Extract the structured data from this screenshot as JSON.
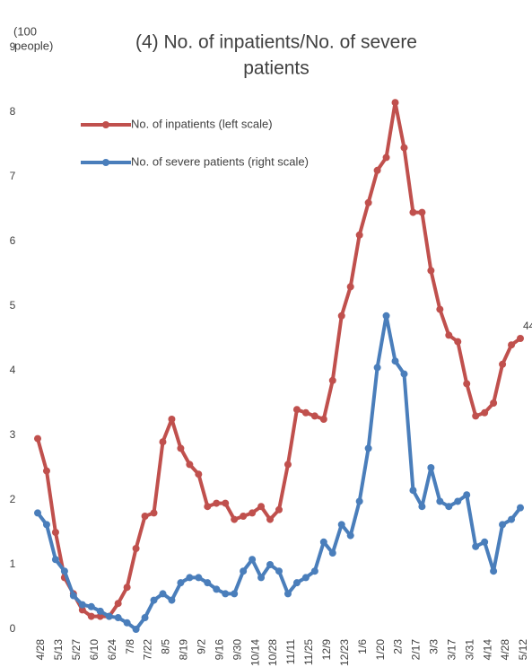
{
  "chart_data": {
    "type": "line",
    "title": [
      "(4) No. of inpatients/No. of severe",
      "patients"
    ],
    "ylabel": [
      "(100",
      "people)"
    ],
    "categories": [
      "4/28",
      null,
      "5/13",
      null,
      "5/27",
      null,
      "6/10",
      null,
      "6/24",
      null,
      "7/8",
      null,
      "7/22",
      null,
      "8/5",
      null,
      "8/19",
      null,
      "9/2",
      null,
      "9/16",
      null,
      "9/30",
      null,
      "10/14",
      null,
      "10/28",
      null,
      "11/11",
      null,
      "11/25",
      null,
      "12/9",
      null,
      "12/23",
      null,
      "1/6",
      null,
      "1/20",
      null,
      "2/3",
      null,
      "2/17",
      null,
      "3/3",
      null,
      "3/17",
      null,
      "3/31",
      null,
      "4/14",
      null,
      "4/28",
      null,
      "5/12"
    ],
    "series": [
      {
        "name": "No. of inpatients (left scale)",
        "color": "#c0504d",
        "values": [
          2.95,
          2.45,
          1.5,
          0.8,
          0.55,
          0.3,
          0.2,
          0.2,
          0.2,
          0.4,
          0.65,
          1.25,
          1.75,
          1.8,
          2.9,
          3.25,
          2.8,
          2.55,
          2.4,
          1.9,
          1.95,
          1.95,
          1.7,
          1.75,
          1.8,
          1.9,
          1.7,
          1.85,
          2.55,
          3.4,
          3.35,
          3.3,
          3.25,
          3.85,
          4.85,
          5.3,
          6.1,
          6.6,
          7.1,
          7.3,
          8.15,
          7.45,
          6.45,
          6.45,
          5.55,
          4.95,
          4.55,
          4.45,
          3.8,
          3.3,
          3.35,
          3.5,
          4.1,
          4.4,
          4.5
        ]
      },
      {
        "name": "No. of severe patients (right scale)",
        "color": "#4a7ebb",
        "values": [
          1.8,
          1.62,
          1.08,
          0.9,
          0.52,
          0.38,
          0.35,
          0.28,
          0.2,
          0.18,
          0.1,
          0.0,
          0.18,
          0.45,
          0.55,
          0.45,
          0.72,
          0.8,
          0.8,
          0.72,
          0.62,
          0.55,
          0.55,
          0.9,
          1.08,
          0.8,
          1.0,
          0.9,
          0.55,
          0.72,
          0.8,
          0.9,
          1.35,
          1.18,
          1.62,
          1.45,
          1.98,
          2.8,
          4.05,
          4.85,
          4.15,
          3.95,
          2.15,
          1.9,
          2.5,
          1.98,
          1.9,
          1.98,
          2.08,
          1.28,
          1.35,
          0.9,
          1.62,
          1.7,
          1.88
        ]
      }
    ],
    "annotation": "44",
    "ylim": [
      0,
      9
    ],
    "yticks": [
      0,
      1,
      2,
      3,
      4,
      5,
      6,
      7,
      8,
      9
    ]
  }
}
